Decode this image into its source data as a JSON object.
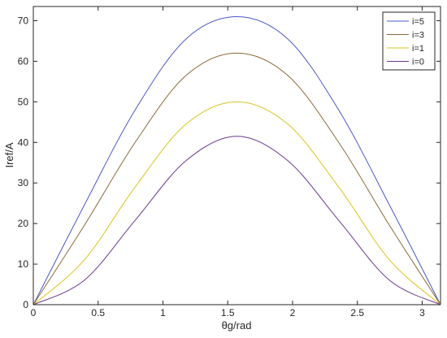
{
  "chart_data": {
    "type": "line",
    "title": "",
    "xlabel": "θg/rad",
    "ylabel": "Iref/A",
    "xlim": [
      0,
      3.14159
    ],
    "ylim": [
      0,
      73.5
    ],
    "xticks": [
      0,
      0.5,
      1,
      1.5,
      2,
      2.5,
      3
    ],
    "xtick_labels": [
      "0",
      "0.5",
      "1",
      "1.5",
      "2",
      "2.5",
      "3"
    ],
    "yticks": [
      0,
      10,
      20,
      30,
      40,
      50,
      60,
      70
    ],
    "ytick_labels": [
      "0",
      "10",
      "20",
      "30",
      "40",
      "50",
      "60",
      "70"
    ],
    "grid": false,
    "legend_position": "top-right",
    "series": [
      {
        "name": "i=5",
        "color": "#4a58c8",
        "x": [
          0,
          0.3927,
          0.7854,
          1.1781,
          1.5708,
          1.9635,
          2.3562,
          2.7489,
          3.1416
        ],
        "values": [
          0.0,
          24.5,
          48.0,
          65.5,
          71.0,
          65.5,
          48.0,
          24.5,
          0.0
        ]
      },
      {
        "name": "i=3",
        "color": "#8a6a3a",
        "x": [
          0,
          0.3927,
          0.7854,
          1.1781,
          1.5708,
          1.9635,
          2.3562,
          2.7489,
          3.1416
        ],
        "values": [
          0.0,
          19.5,
          40.0,
          56.5,
          62.0,
          56.5,
          40.0,
          19.5,
          0.0
        ]
      },
      {
        "name": "i=1",
        "color": "#d8c41e",
        "x": [
          0,
          0.3927,
          0.7854,
          1.1781,
          1.5708,
          1.9635,
          2.3562,
          2.7489,
          3.1416
        ],
        "values": [
          0.0,
          11.0,
          29.0,
          44.5,
          50.0,
          44.5,
          29.0,
          11.0,
          0.0
        ]
      },
      {
        "name": "i=0",
        "color": "#6a3a8e",
        "x": [
          0,
          0.3927,
          0.7854,
          1.1781,
          1.5708,
          1.9635,
          2.3562,
          2.7489,
          3.1416
        ],
        "values": [
          0.0,
          6.0,
          20.8,
          35.5,
          41.5,
          35.5,
          20.8,
          6.0,
          0.0
        ]
      }
    ]
  }
}
